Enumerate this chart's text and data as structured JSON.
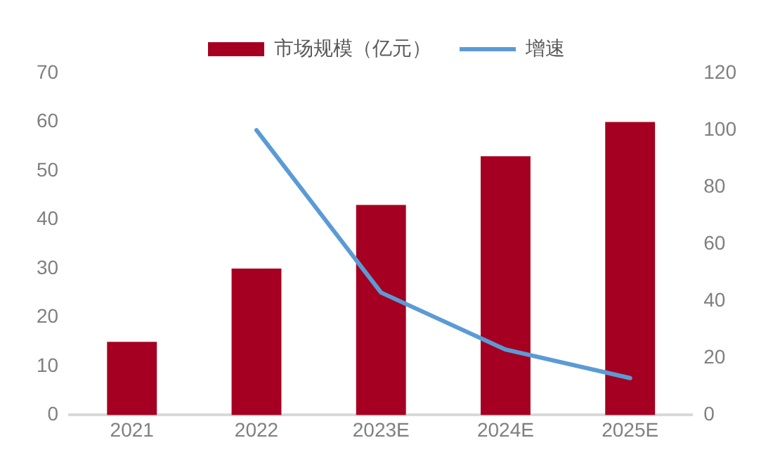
{
  "chart_data": {
    "type": "bar",
    "categories": [
      "2021",
      "2022",
      "2023E",
      "2024E",
      "2025E"
    ],
    "series": [
      {
        "name": "市场规模（亿元）",
        "color": "#a50021",
        "values": [
          15,
          30,
          43,
          53,
          60
        ]
      },
      {
        "name": "增速",
        "type": "line",
        "axis": "y2",
        "color": "#5b9bd5",
        "values": [
          null,
          100,
          43,
          23,
          13
        ]
      }
    ],
    "ylim": [
      0,
      70
    ],
    "yticks": [
      0,
      10,
      20,
      30,
      40,
      50,
      60,
      70
    ],
    "y2lim": [
      0,
      120
    ],
    "y2ticks": [
      0,
      20,
      40,
      60,
      80,
      100,
      120
    ],
    "grid": false,
    "legend": "top",
    "marker": "none"
  }
}
